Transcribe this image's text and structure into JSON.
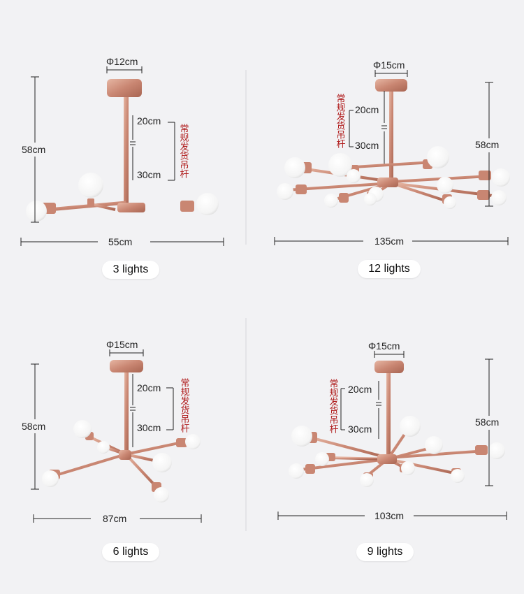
{
  "colors": {
    "background": "#f2f2f4",
    "metal": "#d49a84",
    "metal_dark": "#b87461",
    "bulb": "#ffffff",
    "guide": "#222222",
    "note": "#b01c1c"
  },
  "note_label": "常规发货吊杆",
  "panels": [
    {
      "canopy": "Φ12cm",
      "rod_upper": "20cm",
      "rod_lower": "30cm",
      "height": "58cm",
      "width": "55cm",
      "label": "3 lights"
    },
    {
      "canopy": "Φ15cm",
      "rod_upper": "20cm",
      "rod_lower": "30cm",
      "height": "58cm",
      "width": "135cm",
      "label": "12 lights"
    },
    {
      "canopy": "Φ15cm",
      "rod_upper": "20cm",
      "rod_lower": "30cm",
      "height": "58cm",
      "width": "87cm",
      "label": "6 lights"
    },
    {
      "canopy": "Φ15cm",
      "rod_upper": "20cm",
      "rod_lower": "30cm",
      "height": "58cm",
      "width": "103cm",
      "label": "9 lights"
    }
  ]
}
